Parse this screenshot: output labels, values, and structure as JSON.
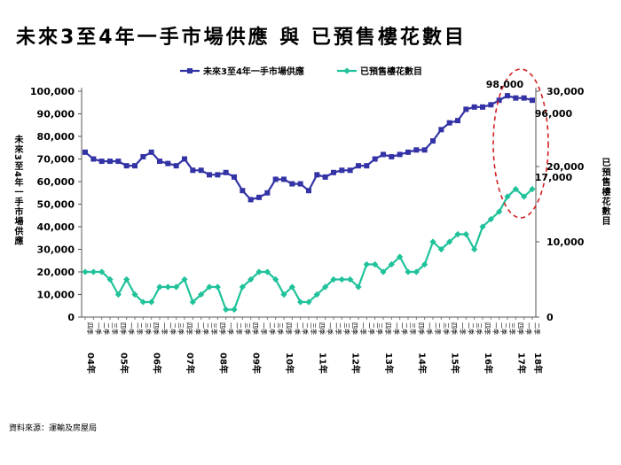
{
  "title": "未來3至4年一手市場供應 與 已預售樓花數目",
  "source": "資料來源：運輸及房屋局",
  "colors": {
    "supply": "#3333a6",
    "presold": "#1fc29a",
    "highlight": "#d22020"
  },
  "chart_data": {
    "type": "line",
    "title": "未來3至4年一手市場供應 與 已預售樓花數目",
    "left_axis_label": "未來3至4年一手市場供應",
    "right_axis_label": "已預售樓花數目",
    "left_ylim": [
      0,
      100000
    ],
    "right_ylim": [
      0,
      30000
    ],
    "left_ticks": [
      "0",
      "10,000",
      "20,000",
      "30,000",
      "40,000",
      "50,000",
      "60,000",
      "70,000",
      "80,000",
      "90,000",
      "100,000"
    ],
    "right_ticks": [
      "0",
      "10,000",
      "20,000",
      "30,000"
    ],
    "quarter_labels": [
      "一季",
      "二季",
      "三季",
      "四季"
    ],
    "year_labels": [
      "04年",
      "05年",
      "06年",
      "07年",
      "08年",
      "09年",
      "10年",
      "11年",
      "12年",
      "13年",
      "14年",
      "15年",
      "16年",
      "17年",
      "18年"
    ],
    "series": [
      {
        "name": "未來3至4年一手市場供應",
        "axis": "left",
        "marker": "square",
        "values": [
          73000,
          70000,
          69000,
          69000,
          69000,
          67000,
          67000,
          71000,
          73000,
          69000,
          68000,
          67000,
          70000,
          65000,
          65000,
          63000,
          63000,
          64000,
          62000,
          56000,
          52000,
          53000,
          55000,
          61000,
          61000,
          59000,
          59000,
          56000,
          63000,
          62000,
          64000,
          65000,
          65000,
          67000,
          67000,
          70000,
          72000,
          71000,
          72000,
          73000,
          74000,
          74000,
          78000,
          83000,
          86000,
          87000,
          92000,
          93000,
          93000,
          94000,
          96000,
          98000,
          97000,
          97000,
          96000
        ]
      },
      {
        "name": "已預售樓花數目",
        "axis": "right",
        "marker": "diamond",
        "values": [
          6000,
          6000,
          6000,
          5000,
          3000,
          5000,
          3000,
          2000,
          2000,
          4000,
          4000,
          4000,
          5000,
          2000,
          3000,
          4000,
          4000,
          1000,
          1000,
          4000,
          5000,
          6000,
          6000,
          5000,
          3000,
          4000,
          2000,
          2000,
          3000,
          4000,
          5000,
          5000,
          5000,
          4000,
          7000,
          7000,
          6000,
          7000,
          8000,
          6000,
          6000,
          7000,
          10000,
          9000,
          10000,
          11000,
          11000,
          9000,
          12000,
          13000,
          14000,
          16000,
          17000,
          16000,
          17000
        ]
      }
    ],
    "annotations": [
      "98,000",
      "96,000",
      "17,000"
    ]
  }
}
